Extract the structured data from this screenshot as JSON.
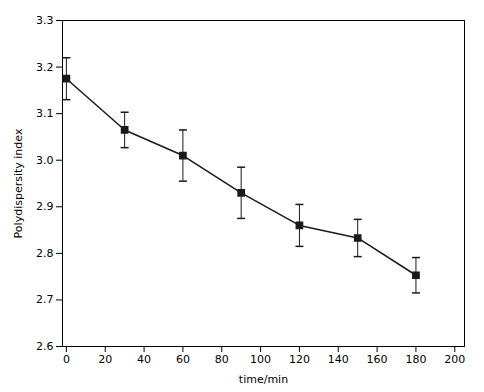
{
  "chart_data": {
    "type": "line",
    "x": [
      0,
      30,
      60,
      90,
      120,
      150,
      180
    ],
    "values": [
      3.175,
      3.065,
      3.01,
      2.93,
      2.86,
      2.833,
      2.753
    ],
    "yerr": [
      0.045,
      0.038,
      0.055,
      0.055,
      0.045,
      0.04,
      0.038
    ],
    "xlabel": "time/min",
    "ylabel": "Polydispersity index",
    "xlim": [
      -2,
      205
    ],
    "ylim": [
      2.6,
      3.3
    ],
    "xticks": [
      0,
      20,
      40,
      60,
      80,
      100,
      120,
      140,
      160,
      180,
      200
    ],
    "yticks": [
      2.6,
      2.7,
      2.8,
      2.9,
      {
        "value": 3.0,
        "label": "3.0"
      },
      3.1,
      3.2,
      3.3
    ],
    "color": "#1a1a1a",
    "marker": "square",
    "line_style": "solid"
  }
}
